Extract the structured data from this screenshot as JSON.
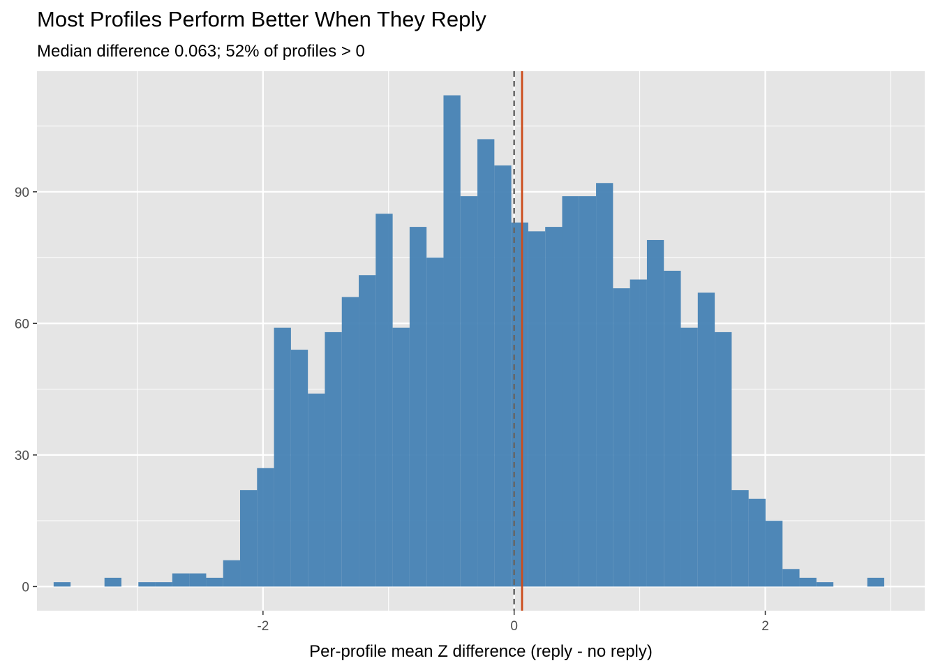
{
  "chart_data": {
    "type": "bar",
    "title": "Most Profiles Perform Better When They Reply",
    "subtitle": "Median difference 0.063; 52% of profiles > 0",
    "xlabel": "Per-profile mean Z difference (reply - no reply)",
    "ylabel": "",
    "xlim": [
      -3.8,
      3.27
    ],
    "ylim": [
      -5.5,
      117.5
    ],
    "x_ticks": [
      -2,
      0,
      2
    ],
    "y_ticks": [
      0,
      30,
      60,
      90
    ],
    "grid": true,
    "bin_width": 0.135,
    "bins": {
      "centers": [
        -3.6,
        -3.465,
        -3.33,
        -3.195,
        -3.06,
        -2.925,
        -2.79,
        -2.655,
        -2.52,
        -2.385,
        -2.25,
        -2.115,
        -1.98,
        -1.845,
        -1.71,
        -1.575,
        -1.44,
        -1.305,
        -1.17,
        -1.035,
        -0.9,
        -0.765,
        -0.63,
        -0.495,
        -0.36,
        -0.225,
        -0.09,
        0.045,
        0.18,
        0.315,
        0.45,
        0.585,
        0.72,
        0.855,
        0.99,
        1.125,
        1.26,
        1.395,
        1.53,
        1.665,
        1.8,
        1.935,
        2.07,
        2.205,
        2.34,
        2.475,
        2.61,
        2.745,
        2.88,
        3.015
      ],
      "counts": [
        1,
        0,
        0,
        2,
        0,
        1,
        1,
        3,
        3,
        2,
        6,
        22,
        27,
        59,
        54,
        44,
        58,
        66,
        71,
        85,
        59,
        82,
        75,
        112,
        89,
        102,
        96,
        83,
        81,
        82,
        89,
        89,
        92,
        68,
        70,
        79,
        72,
        59,
        67,
        58,
        22,
        20,
        15,
        4,
        2,
        1,
        0,
        0,
        2,
        0
      ]
    },
    "reference_line": {
      "x": 0,
      "style": "dashed",
      "color": "#666666"
    },
    "median_line": {
      "x": 0.063,
      "color": "#CC4C1C"
    },
    "colors": {
      "bar": "#4682B4",
      "panel_background": "#E5E5E5",
      "grid_line": "#FFFFFF"
    }
  }
}
